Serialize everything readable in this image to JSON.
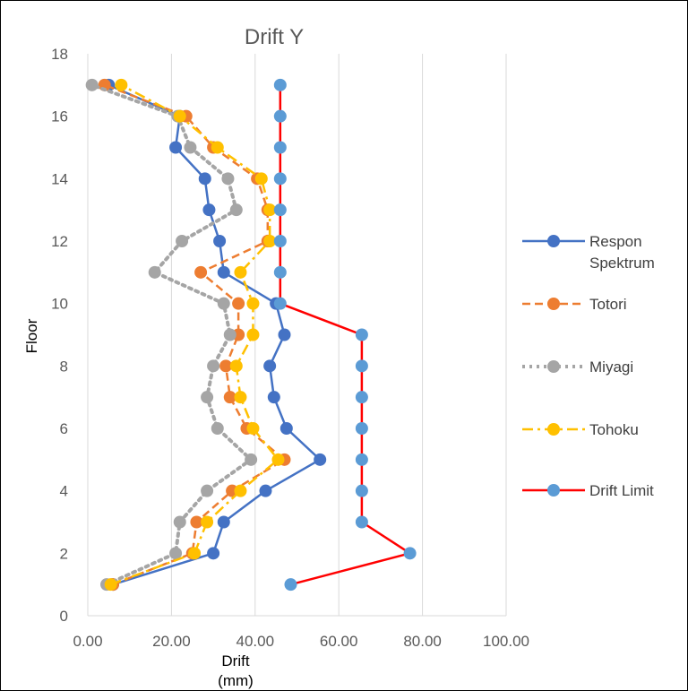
{
  "chart_data": {
    "type": "line",
    "title": "Drift Y",
    "xlabel": "Drift",
    "xlabel_unit": "(mm)",
    "ylabel": "Floor",
    "xlim": [
      0,
      100
    ],
    "ylim": [
      0,
      18
    ],
    "x_ticks": [
      "0.00",
      "20.00",
      "40.00",
      "60.00",
      "80.00",
      "100.00"
    ],
    "y_ticks": [
      "0",
      "2",
      "4",
      "6",
      "8",
      "10",
      "12",
      "14",
      "16",
      "18"
    ],
    "grid": "vertical",
    "legend_position": "right",
    "series": [
      {
        "name": "Respon Spektrum",
        "color": "#4472C4",
        "line_style": "solid",
        "marker_color": "#4472C4",
        "x": [
          6,
          30,
          32.5,
          42.5,
          55.5,
          47.5,
          44.5,
          43.5,
          47,
          45,
          32.5,
          31.5,
          29,
          28,
          21,
          22,
          5
        ],
        "y": [
          1,
          2,
          3,
          4,
          5,
          6,
          7,
          8,
          9,
          10,
          11,
          12,
          13,
          14,
          15,
          16,
          17
        ]
      },
      {
        "name": "Totori",
        "color": "#ED7D31",
        "line_style": "dashed",
        "marker_color": "#ED7D31",
        "x": [
          6,
          25,
          26,
          34.5,
          47,
          38,
          34,
          33,
          36,
          36,
          27,
          43,
          43,
          40.5,
          30,
          23.5,
          4
        ],
        "y": [
          1,
          2,
          3,
          4,
          5,
          6,
          7,
          8,
          9,
          10,
          11,
          12,
          13,
          14,
          15,
          16,
          17
        ]
      },
      {
        "name": "Miyagi",
        "color": "#A5A5A5",
        "line_style": "dotted",
        "marker_color": "#A5A5A5",
        "x": [
          4.5,
          21,
          22,
          28.5,
          39,
          31,
          28.5,
          30,
          34,
          32.5,
          16,
          22.5,
          35.5,
          33.5,
          24.5,
          21.5,
          1
        ],
        "y": [
          1,
          2,
          3,
          4,
          5,
          6,
          7,
          8,
          9,
          10,
          11,
          12,
          13,
          14,
          15,
          16,
          17
        ]
      },
      {
        "name": "Tohoku",
        "color": "#FFC000",
        "line_style": "dashdot",
        "marker_color": "#FFC000",
        "x": [
          5.5,
          25.5,
          28.5,
          36.5,
          45.5,
          39.5,
          36.5,
          35.5,
          39.5,
          39.5,
          36.5,
          43.5,
          43.5,
          41.5,
          31,
          22,
          8
        ],
        "y": [
          1,
          2,
          3,
          4,
          5,
          6,
          7,
          8,
          9,
          10,
          11,
          12,
          13,
          14,
          15,
          16,
          17
        ]
      },
      {
        "name": "Drift Limit",
        "color": "#FF0000",
        "line_style": "solid",
        "marker_color": "#5B9BD5",
        "x": [
          48.5,
          77,
          65.5,
          65.5,
          65.5,
          65.5,
          65.5,
          65.5,
          65.5,
          46,
          46,
          46,
          46,
          46,
          46,
          46,
          46
        ],
        "y": [
          1,
          2,
          3,
          4,
          5,
          6,
          7,
          8,
          9,
          10,
          11,
          12,
          13,
          14,
          15,
          16,
          17
        ]
      }
    ]
  }
}
